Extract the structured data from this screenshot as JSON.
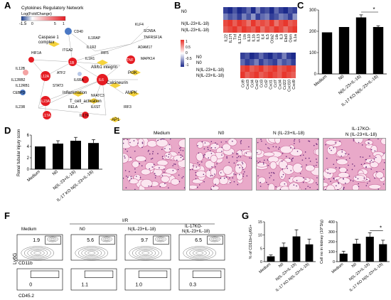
{
  "labels": {
    "A": "A",
    "B": "B",
    "C": "C",
    "D": "D",
    "E": "E",
    "F": "F",
    "G": "G"
  },
  "network": {
    "title": "Cytokines Regulatory Network",
    "legend_title": "Log(FoldChange)",
    "legend_ticks": [
      "-1.5",
      "0",
      "5",
      "1"
    ],
    "nodes": [
      {
        "id": "IL-12A_a",
        "label": "IL12A"
      },
      {
        "id": "cd",
        "label": "Caspase 1 complex"
      }
    ],
    "node_labels": [
      "CD40",
      "IL1RAP",
      "KLF4",
      "SCN5A",
      "TNFRSF1A",
      "ITGA2",
      "IL1R2",
      "IRF5",
      "HIF1A",
      "IL1B",
      "IL1R1",
      "TNF",
      "ADAM17",
      "A9/b1 integrin",
      "PI3K",
      "MAPK14",
      "IL12B",
      "IL12A",
      "ATF2",
      "IL6RA",
      "IL6",
      "IL12RB2",
      "IL12RB1",
      "STAT3",
      "Calcineurin",
      "CEBPD",
      "Inflammation",
      "T_cell_activation",
      "AMPK",
      "IL23R",
      "IL23A",
      "NFATC3",
      "IL6ST",
      "IRF3",
      "RELA",
      "IL17A",
      "IL17F",
      "AP1"
    ],
    "caspase_label": "Caspase 1\ncomplex"
  },
  "heatmaps": {
    "rows": [
      "N0",
      "N(IL-23+IL-18)"
    ],
    "top_cols": [
      "IL22",
      "IL17f",
      "Tnf",
      "IL17a",
      "Lta",
      "IL10",
      "IL1b",
      "IL13",
      "IL4",
      "IL5",
      "Ctla2",
      "Ltb",
      "IL3",
      "Ebi3",
      "Osm",
      "IL1a"
    ],
    "bottom_cols": [
      "Ccl9",
      "Cxcl3",
      "Ccl4",
      "Cxcl2",
      "Ccl3",
      "Ccl2",
      "Cxcl1",
      "Ccl7",
      "Cxcl4",
      "Ccl22",
      "Cxcl10",
      "Cxcl9"
    ],
    "legend_ticks": [
      "1",
      "0.5",
      "0",
      "-0.5",
      "-1"
    ],
    "colors": {
      "high": "#e8332a",
      "low": "#1c2a8c",
      "mid": "#ffffff"
    }
  },
  "chart_data": [
    {
      "type": "bar",
      "panel": "C",
      "categories": [
        "Medium",
        "N0",
        "N(IL-23+IL-18)",
        "IL-17 KO N(IL-23+IL-18)"
      ],
      "values": [
        195,
        220,
        265,
        220
      ],
      "errors": [
        0,
        0,
        12,
        6
      ],
      "ylim": [
        0,
        300
      ],
      "yticks": [
        "0",
        "100",
        "200",
        "300"
      ],
      "significance": "*"
    },
    {
      "type": "bar",
      "panel": "D",
      "categories": [
        "Medium",
        "N0",
        "N(IL-23+IL-18)",
        "IL-17 KO N(IL-23+IL-18)"
      ],
      "values": [
        4,
        4.5,
        5,
        4.6
      ],
      "errors": [
        0,
        0.5,
        0.6,
        0.6
      ],
      "ylim": [
        0,
        6
      ],
      "yticks": [
        "0",
        "2",
        "4",
        "6"
      ],
      "ylabel": "Renal tubular injury score"
    },
    {
      "type": "bar",
      "panel": "G-left",
      "categories": [
        "Medium",
        "N0",
        "N(IL-23+IL-18)",
        "IL-17 KO N(IL-23+IL-18)"
      ],
      "values": [
        2,
        5.5,
        9.5,
        6.5
      ],
      "errors": [
        0.5,
        1.5,
        2.5,
        2.0
      ],
      "ylim": [
        0,
        15
      ],
      "yticks": [
        "0",
        "5",
        "10",
        "15"
      ],
      "ylabel": "% of CD11b+Ly6G+"
    },
    {
      "type": "bar",
      "panel": "G-right",
      "categories": [
        "Medium",
        "N0",
        "N(IL-23+IL-18)",
        "IL-17 KO N(IL-23+IL-18)"
      ],
      "values": [
        80,
        180,
        250,
        175
      ],
      "errors": [
        25,
        45,
        40,
        40
      ],
      "ylim": [
        0,
        400
      ],
      "yticks": [
        "0",
        "100",
        "200",
        "300",
        "400"
      ],
      "ylabel": "Cell no in kidney (10^3/g)",
      "significance": "*"
    }
  ],
  "histology": {
    "labels": [
      "Medium",
      "N0",
      "N (IL-23+IL-18)",
      "IL-17KO-\nN (IL-23+IL-18)"
    ],
    "tissue_color": "#e9a9c9"
  },
  "flow": {
    "group_header": "I/R",
    "columns": [
      "Medium",
      "N0",
      "N(IL-23+IL-18)",
      "IL-17KO-\nN(IL-23+IL-18)"
    ],
    "top_values": [
      "1.9",
      "5.6",
      "9.7",
      "6.5"
    ],
    "bottom_values": [
      "0",
      "1.1",
      "1.0",
      "0.3"
    ],
    "xlabel_top": "CD11b",
    "ylabel": "Ly6G",
    "xlabel_bottom": "CD45.2"
  }
}
